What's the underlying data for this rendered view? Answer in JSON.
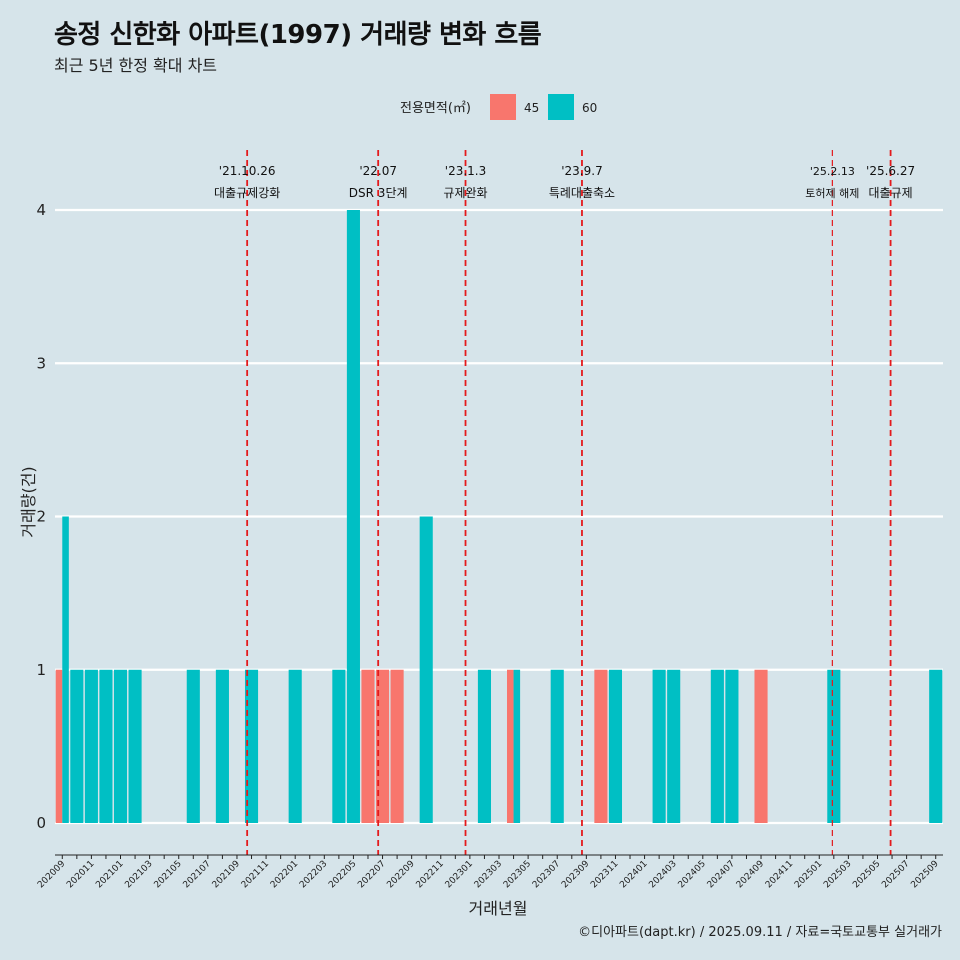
{
  "title": "송정 신한화 아파트(1997) 거래량 변화 흐름",
  "subtitle": "최근 5년 한정 확대 차트",
  "caption": "©디아파트(dapt.kr) / 2025.09.11 / 자료=국토교통부 실거래가",
  "chart_data": {
    "type": "bar",
    "xlabel": "거래년월",
    "ylabel": "거래량(건)",
    "ylim": [
      0,
      4
    ],
    "yticks": [
      0,
      1,
      2,
      3,
      4
    ],
    "legend_title": "전용면적(㎡)",
    "legend_position": "top",
    "grid": true,
    "categories": [
      "202009",
      "202010",
      "202011",
      "202012",
      "202101",
      "202102",
      "202103",
      "202104",
      "202105",
      "202106",
      "202107",
      "202108",
      "202109",
      "202110",
      "202111",
      "202112",
      "202201",
      "202202",
      "202203",
      "202204",
      "202205",
      "202206",
      "202207",
      "202208",
      "202209",
      "202210",
      "202211",
      "202212",
      "202301",
      "202302",
      "202303",
      "202304",
      "202305",
      "202306",
      "202307",
      "202308",
      "202309",
      "202310",
      "202311",
      "202312",
      "202401",
      "202402",
      "202403",
      "202404",
      "202405",
      "202406",
      "202407",
      "202408",
      "202409",
      "202410",
      "202411",
      "202412",
      "202501",
      "202502",
      "202503",
      "202504",
      "202505",
      "202506",
      "202507",
      "202508",
      "202509"
    ],
    "series": [
      {
        "name": "45",
        "color": "#f8766d",
        "values": [
          1,
          0,
          0,
          0,
          0,
          0,
          0,
          0,
          0,
          0,
          0,
          0,
          0,
          0,
          0,
          0,
          0,
          0,
          0,
          0,
          0,
          1,
          1,
          1,
          0,
          0,
          0,
          0,
          0,
          0,
          0,
          1,
          0,
          0,
          0,
          0,
          0,
          1,
          0,
          0,
          0,
          0,
          0,
          0,
          0,
          0,
          0,
          0,
          1,
          0,
          0,
          0,
          0,
          0,
          0,
          0,
          0,
          0,
          0,
          0,
          0
        ]
      },
      {
        "name": "60",
        "color": "#00bfc4",
        "values": [
          2,
          1,
          1,
          1,
          1,
          1,
          0,
          0,
          0,
          1,
          0,
          1,
          0,
          1,
          0,
          0,
          1,
          0,
          0,
          1,
          4,
          0,
          0,
          0,
          0,
          2,
          0,
          0,
          0,
          1,
          0,
          1,
          0,
          0,
          1,
          0,
          0,
          0,
          1,
          0,
          0,
          1,
          1,
          0,
          0,
          1,
          1,
          0,
          0,
          0,
          0,
          0,
          0,
          1,
          0,
          0,
          0,
          0,
          0,
          0,
          1
        ]
      }
    ],
    "annotations": [
      {
        "x": 13.2,
        "date": "'21.10.26",
        "label": "대출규제강화"
      },
      {
        "x": 22.2,
        "date": "'22.07",
        "label": "DSR 3단계"
      },
      {
        "x": 28.2,
        "date": "'23.1.3",
        "label": "규제완화"
      },
      {
        "x": 36.2,
        "date": "'23.9.7",
        "label": "특례대출축소"
      },
      {
        "x": 53.4,
        "date": "'25.2.13",
        "label": "토허제 해제"
      },
      {
        "x": 57.4,
        "date": "'25.6.27",
        "label": "대출규제"
      }
    ]
  }
}
